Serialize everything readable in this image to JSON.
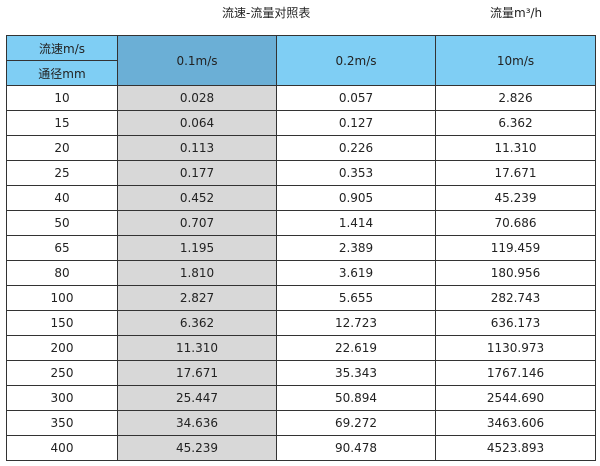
{
  "title": "流速-流量对照表",
  "unit_label": "流量m³/h",
  "header": {
    "velocity_label": "流速m/s",
    "diameter_label": "通径mm",
    "columns": [
      "0.1m/s",
      "0.2m/s",
      "10m/s"
    ]
  },
  "colors": {
    "header_blue": "#7fcef4",
    "header_dark_blue": "#6bafd6",
    "shaded_column": "#d8d8d8"
  },
  "rows": [
    [
      "10",
      "0.028",
      "0.057",
      "2.826"
    ],
    [
      "15",
      "0.064",
      "0.127",
      "6.362"
    ],
    [
      "20",
      "0.113",
      "0.226",
      "11.310"
    ],
    [
      "25",
      "0.177",
      "0.353",
      "17.671"
    ],
    [
      "40",
      "0.452",
      "0.905",
      "45.239"
    ],
    [
      "50",
      "0.707",
      "1.414",
      "70.686"
    ],
    [
      "65",
      "1.195",
      "2.389",
      "119.459"
    ],
    [
      "80",
      "1.810",
      "3.619",
      "180.956"
    ],
    [
      "100",
      "2.827",
      "5.655",
      "282.743"
    ],
    [
      "150",
      "6.362",
      "12.723",
      "636.173"
    ],
    [
      "200",
      "11.310",
      "22.619",
      "1130.973"
    ],
    [
      "250",
      "17.671",
      "35.343",
      "1767.146"
    ],
    [
      "300",
      "25.447",
      "50.894",
      "2544.690"
    ],
    [
      "350",
      "34.636",
      "69.272",
      "3463.606"
    ],
    [
      "400",
      "45.239",
      "90.478",
      "4523.893"
    ]
  ]
}
